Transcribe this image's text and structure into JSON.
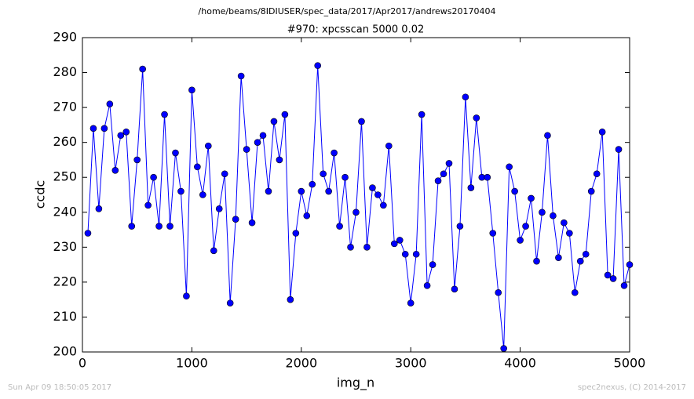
{
  "chart_data": {
    "type": "line",
    "suptitle": "/home/beams/8IDIUSER/spec_data/2017/Apr2017/andrews20170404",
    "title": "#970: xpcsscan 5000 0.02",
    "x_label": "img_n",
    "y_label": "ccdc",
    "footer_left": "Sun Apr 09 18:50:05 2017",
    "footer_right": "spec2nexus, (C) 2014-2017",
    "x": [
      50,
      100,
      150,
      200,
      250,
      300,
      350,
      400,
      450,
      500,
      550,
      600,
      650,
      700,
      750,
      800,
      850,
      900,
      950,
      1000,
      1050,
      1100,
      1150,
      1200,
      1250,
      1300,
      1350,
      1400,
      1450,
      1500,
      1550,
      1600,
      1650,
      1700,
      1750,
      1800,
      1850,
      1900,
      1950,
      2000,
      2050,
      2100,
      2150,
      2200,
      2250,
      2300,
      2350,
      2400,
      2450,
      2500,
      2550,
      2600,
      2650,
      2700,
      2750,
      2800,
      2850,
      2900,
      2950,
      3000,
      3050,
      3100,
      3150,
      3200,
      3250,
      3300,
      3350,
      3400,
      3450,
      3500,
      3550,
      3600,
      3650,
      3700,
      3750,
      3800,
      3850,
      3900,
      3950,
      4000,
      4050,
      4100,
      4150,
      4200,
      4250,
      4300,
      4350,
      4400,
      4450,
      4500,
      4550,
      4600,
      4650,
      4700,
      4750,
      4800,
      4850,
      4900,
      4950,
      5000
    ],
    "series": [
      {
        "name": "ccdc",
        "color": "#0000ff",
        "values": [
          234,
          264,
          241,
          264,
          271,
          252,
          262,
          263,
          236,
          255,
          281,
          242,
          250,
          236,
          268,
          236,
          257,
          246,
          216,
          275,
          253,
          245,
          259,
          229,
          241,
          251,
          214,
          238,
          279,
          258,
          237,
          260,
          262,
          246,
          266,
          255,
          268,
          215,
          234,
          246,
          239,
          248,
          282,
          251,
          246,
          257,
          236,
          250,
          230,
          240,
          266,
          230,
          247,
          245,
          242,
          259,
          231,
          232,
          228,
          214,
          228,
          268,
          219,
          225,
          249,
          251,
          254,
          218,
          236,
          273,
          247,
          267,
          250,
          250,
          234,
          217,
          201,
          253,
          246,
          232,
          236,
          244,
          226,
          240,
          262,
          239,
          227,
          237,
          234,
          217,
          226,
          228,
          246,
          251,
          263,
          222,
          221,
          258,
          219,
          225
        ]
      }
    ],
    "xlim": [
      0,
      5000
    ],
    "xticks": [
      0,
      1000,
      2000,
      3000,
      4000,
      5000
    ],
    "ylim": [
      200,
      290
    ],
    "yticks": [
      200,
      210,
      220,
      230,
      240,
      250,
      260,
      270,
      280,
      290
    ],
    "grid": false
  }
}
